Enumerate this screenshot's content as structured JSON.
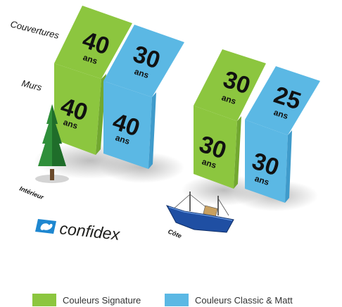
{
  "labels": {
    "roofs": "Couvertures",
    "walls": "Murs",
    "interior": "Intérieur",
    "coast": "Côte"
  },
  "unit": "ans",
  "groups": [
    {
      "name": "Intérieur",
      "panels": [
        {
          "series": "Couleurs Signature",
          "roof_years": "40",
          "wall_years": "40"
        },
        {
          "series": "Couleurs Classic & Matt",
          "roof_years": "30",
          "wall_years": "40"
        }
      ]
    },
    {
      "name": "Côte",
      "panels": [
        {
          "series": "Couleurs Signature",
          "roof_years": "30",
          "wall_years": "30"
        },
        {
          "series": "Couleurs Classic & Matt",
          "roof_years": "25",
          "wall_years": "30"
        }
      ]
    }
  ],
  "legend": [
    {
      "label": "Couleurs Signature",
      "color": "#8cc63f"
    },
    {
      "label": "Couleurs Classic & Matt",
      "color": "#5bb8e4"
    }
  ],
  "logo": {
    "text": "confidex",
    "color": "#1e87d0"
  },
  "colors": {
    "green": "#8cc63f",
    "green_dark": "#72a830",
    "blue": "#5bb8e4",
    "blue_dark": "#3f9bcb"
  }
}
